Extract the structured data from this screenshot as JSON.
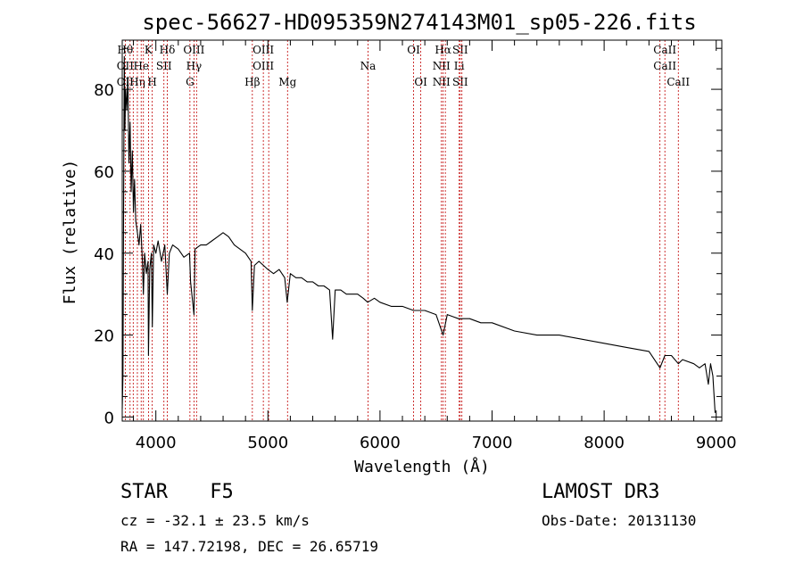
{
  "chart_data": {
    "type": "line",
    "title": "spec-56627-HD095359N274143M01_sp05-226.fits",
    "xlabel": "Wavelength (Å)",
    "ylabel": "Flux (relative)",
    "xlim": [
      3700,
      9050
    ],
    "ylim": [
      -1,
      92
    ],
    "xticks": [
      "4000",
      "5000",
      "6000",
      "7000",
      "8000",
      "9000"
    ],
    "xtick_values": [
      4000,
      5000,
      6000,
      7000,
      8000,
      9000
    ],
    "yticks": [
      "0",
      "20",
      "40",
      "60",
      "80"
    ],
    "ytick_values": [
      0,
      20,
      40,
      60,
      80
    ],
    "series": [
      {
        "name": "spectrum",
        "x": [
          3700,
          3706,
          3712,
          3718,
          3724,
          3730,
          3740,
          3750,
          3760,
          3770,
          3780,
          3790,
          3800,
          3810,
          3820,
          3835,
          3850,
          3865,
          3880,
          3889,
          3900,
          3915,
          3930,
          3934,
          3945,
          3960,
          3968,
          3980,
          4000,
          4020,
          4050,
          4080,
          4102,
          4120,
          4150,
          4200,
          4250,
          4300,
          4310,
          4340,
          4350,
          4400,
          4450,
          4500,
          4550,
          4600,
          4650,
          4700,
          4750,
          4800,
          4850,
          4861,
          4880,
          4920,
          4960,
          5000,
          5050,
          5100,
          5150,
          5172,
          5200,
          5250,
          5300,
          5350,
          5400,
          5450,
          5500,
          5550,
          5577,
          5600,
          5650,
          5700,
          5750,
          5800,
          5850,
          5890,
          5950,
          6000,
          6100,
          6200,
          6300,
          6400,
          6500,
          6563,
          6600,
          6700,
          6800,
          6900,
          7000,
          7200,
          7400,
          7600,
          7800,
          8000,
          8200,
          8400,
          8498,
          8542,
          8600,
          8662,
          8700,
          8800,
          8850,
          8900,
          8930,
          8950,
          8970,
          8990
        ],
        "y": [
          2,
          10,
          50,
          88,
          70,
          80,
          75,
          83,
          62,
          72,
          55,
          65,
          50,
          58,
          48,
          45,
          42,
          47,
          38,
          30,
          40,
          35,
          38,
          15,
          36,
          40,
          22,
          42,
          40,
          43,
          38,
          42,
          30,
          40,
          42,
          41,
          39,
          40,
          33,
          25,
          41,
          42,
          42,
          43,
          44,
          45,
          44,
          42,
          41,
          40,
          38,
          26,
          37,
          38,
          37,
          36,
          35,
          36,
          34,
          28,
          35,
          34,
          34,
          33,
          33,
          32,
          32,
          31,
          19,
          31,
          31,
          30,
          30,
          30,
          29,
          28,
          29,
          28,
          27,
          27,
          26,
          26,
          25,
          20,
          25,
          24,
          24,
          23,
          23,
          21,
          20,
          20,
          19,
          18,
          17,
          16,
          12,
          15,
          15,
          13,
          14,
          13,
          12,
          13,
          8,
          13,
          10,
          1
        ]
      }
    ],
    "lines": [
      {
        "wl": 3727,
        "top": "Hθ",
        "mid": "OII",
        "bot": "OII"
      },
      {
        "wl": 3770,
        "top": "",
        "mid": "",
        "bot": ""
      },
      {
        "wl": 3798,
        "top": "",
        "mid": "",
        "bot": ""
      },
      {
        "wl": 3835,
        "top": "",
        "mid": "",
        "bot": "Hη"
      },
      {
        "wl": 3869,
        "top": "",
        "mid": "He",
        "bot": ""
      },
      {
        "wl": 3889,
        "top": "",
        "mid": "",
        "bot": ""
      },
      {
        "wl": 3934,
        "top": "K",
        "mid": "",
        "bot": ""
      },
      {
        "wl": 3968,
        "top": "",
        "mid": "",
        "bot": "H"
      },
      {
        "wl": 4072,
        "top": "",
        "mid": "SII",
        "bot": ""
      },
      {
        "wl": 4102,
        "top": "Hδ",
        "mid": "",
        "bot": ""
      },
      {
        "wl": 4304,
        "top": "",
        "mid": "",
        "bot": "G"
      },
      {
        "wl": 4340,
        "top": "OIII",
        "mid": "Hγ",
        "bot": ""
      },
      {
        "wl": 4363,
        "top": "",
        "mid": "",
        "bot": ""
      },
      {
        "wl": 4861,
        "top": "",
        "mid": "",
        "bot": "Hβ"
      },
      {
        "wl": 4959,
        "top": "OIII",
        "mid": "OIII",
        "bot": ""
      },
      {
        "wl": 5007,
        "top": "",
        "mid": "",
        "bot": ""
      },
      {
        "wl": 5175,
        "top": "",
        "mid": "",
        "bot": "Mg"
      },
      {
        "wl": 5893,
        "top": "",
        "mid": "Na",
        "bot": ""
      },
      {
        "wl": 6300,
        "top": "OI",
        "mid": "",
        "bot": ""
      },
      {
        "wl": 6364,
        "top": "",
        "mid": "",
        "bot": "OI"
      },
      {
        "wl": 6548,
        "top": "",
        "mid": "NII",
        "bot": "NII"
      },
      {
        "wl": 6563,
        "top": "Hα",
        "mid": "",
        "bot": ""
      },
      {
        "wl": 6583,
        "top": "",
        "mid": "",
        "bot": ""
      },
      {
        "wl": 6707,
        "top": "",
        "mid": "Li",
        "bot": ""
      },
      {
        "wl": 6716,
        "top": "SII",
        "mid": "",
        "bot": "SII"
      },
      {
        "wl": 6731,
        "top": "",
        "mid": "",
        "bot": ""
      },
      {
        "wl": 8498,
        "top": "",
        "mid": "",
        "bot": ""
      },
      {
        "wl": 8542,
        "top": "CaII",
        "mid": "CaII",
        "bot": ""
      },
      {
        "wl": 8662,
        "top": "",
        "mid": "",
        "bot": "CaII"
      }
    ]
  },
  "info": {
    "class_label": "STAR",
    "subclass": "F5",
    "survey": "LAMOST DR3",
    "cz": "cz = -32.1 ± 23.5 km/s",
    "obs_date": "Obs-Date: 20131130",
    "radec": "RA = 147.72198, DEC =  26.65719"
  }
}
